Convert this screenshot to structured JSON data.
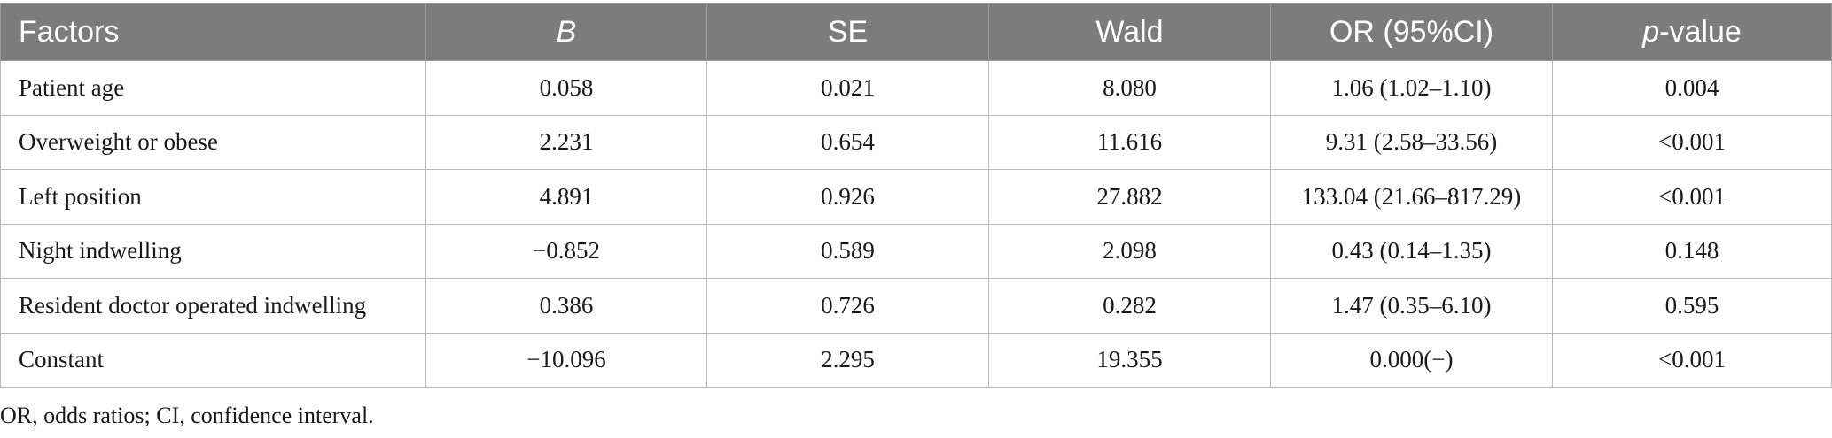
{
  "table": {
    "headers": {
      "factors": "Factors",
      "b": "B",
      "se": "SE",
      "wald": "Wald",
      "or": "OR (95%CI)",
      "p_italic": "p",
      "p_rest": "-value"
    },
    "rows": [
      {
        "factor": "Patient age",
        "b": "0.058",
        "se": "0.021",
        "wald": "8.080",
        "or": "1.06 (1.02–1.10)",
        "p": "0.004"
      },
      {
        "factor": "Overweight or obese",
        "b": "2.231",
        "se": "0.654",
        "wald": "11.616",
        "or": "9.31 (2.58–33.56)",
        "p": "<0.001"
      },
      {
        "factor": "Left position",
        "b": "4.891",
        "se": "0.926",
        "wald": "27.882",
        "or": "133.04 (21.66–817.29)",
        "p": "<0.001"
      },
      {
        "factor": "Night indwelling",
        "b": "−0.852",
        "se": "0.589",
        "wald": "2.098",
        "or": "0.43 (0.14–1.35)",
        "p": "0.148"
      },
      {
        "factor": "Resident doctor operated indwelling",
        "b": "0.386",
        "se": "0.726",
        "wald": "0.282",
        "or": "1.47 (0.35–6.10)",
        "p": "0.595"
      },
      {
        "factor": "Constant",
        "b": "−10.096",
        "se": "2.295",
        "wald": "19.355",
        "or": "0.000(−)",
        "p": "<0.001"
      }
    ]
  },
  "footnote": "OR, odds ratios; CI, confidence interval."
}
